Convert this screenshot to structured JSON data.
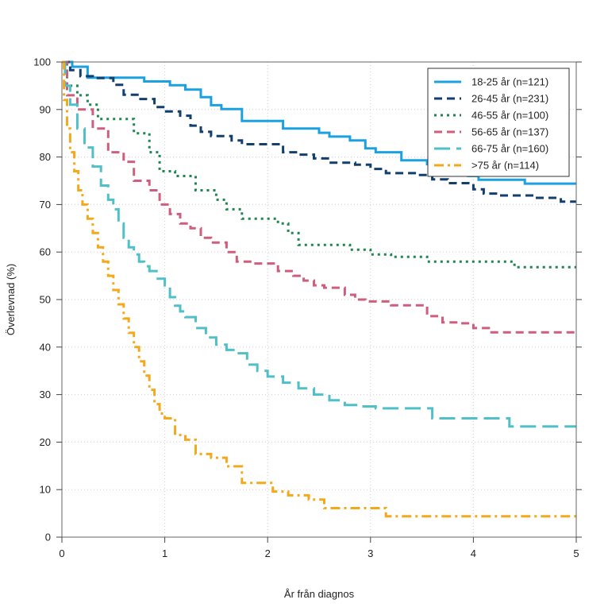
{
  "chart_data": {
    "type": "line",
    "title": "",
    "xlabel": "År från diagnos",
    "ylabel": "Överlevnad (%)",
    "xlim": [
      0,
      5
    ],
    "ylim": [
      0,
      100
    ],
    "x_ticks": [
      "0",
      "1",
      "2",
      "3",
      "4",
      "5"
    ],
    "y_ticks": [
      "0",
      "10",
      "20",
      "30",
      "40",
      "50",
      "60",
      "70",
      "80",
      "90",
      "100"
    ],
    "grid": true,
    "legend_position": "top-right",
    "step": true,
    "series": [
      {
        "name": "18-25 år (n=121)",
        "color": "#1ba1e2",
        "dash": "solid",
        "x": [
          0,
          0.1,
          0.25,
          0.4,
          0.6,
          0.8,
          0.95,
          1.05,
          1.2,
          1.35,
          1.45,
          1.55,
          1.75,
          1.85,
          2.0,
          2.15,
          2.3,
          2.5,
          2.6,
          2.75,
          2.8,
          2.95,
          3.05,
          3.3,
          3.55,
          3.6,
          3.7,
          3.8,
          3.95,
          4.05,
          4.35,
          4.5,
          5.0
        ],
        "y": [
          100,
          99,
          96.7,
          96.7,
          96.7,
          95.9,
          95.9,
          95.1,
          94.2,
          92.6,
          90.9,
          90.1,
          87.6,
          87.6,
          87.6,
          86,
          86,
          85.1,
          84.3,
          84.3,
          83.5,
          81.8,
          81,
          79.3,
          78.5,
          77.7,
          77.7,
          76.9,
          76,
          75.2,
          75.2,
          74.4,
          74.4
        ]
      },
      {
        "name": "26-45 år (n=231)",
        "color": "#123f6e",
        "dash": "dashed",
        "x": [
          0,
          0.08,
          0.18,
          0.3,
          0.5,
          0.6,
          0.75,
          0.9,
          1.0,
          1.15,
          1.25,
          1.35,
          1.45,
          1.65,
          1.75,
          1.85,
          2.0,
          2.15,
          2.3,
          2.45,
          2.6,
          2.85,
          3.0,
          3.15,
          3.45,
          3.6,
          3.75,
          3.9,
          4.0,
          4.1,
          4.25,
          4.6,
          4.85,
          5.0
        ],
        "y": [
          100,
          98.3,
          97,
          96.6,
          95.2,
          93.1,
          92.2,
          90.5,
          89.6,
          88.7,
          86.6,
          85.3,
          84.4,
          83.5,
          82.7,
          82.7,
          82.7,
          81,
          80.5,
          79.7,
          78.8,
          78.4,
          77.5,
          76.6,
          76.2,
          75.3,
          74.5,
          74.5,
          73.2,
          72.3,
          71.9,
          71.4,
          70.6,
          70.6
        ]
      },
      {
        "name": "46-55 år (n=100)",
        "color": "#1e8650",
        "dash": "dotted",
        "x": [
          0,
          0.05,
          0.15,
          0.25,
          0.35,
          0.55,
          0.7,
          0.85,
          0.95,
          1.1,
          1.3,
          1.5,
          1.6,
          1.75,
          1.95,
          2.1,
          2.2,
          2.3,
          2.55,
          2.8,
          3.0,
          3.2,
          3.5,
          3.55,
          3.75,
          4.05,
          4.2,
          4.4,
          5.0
        ],
        "y": [
          100,
          95,
          93,
          91,
          88,
          88,
          85,
          81,
          77,
          76,
          73,
          71,
          69,
          67,
          67,
          66,
          64,
          61.5,
          61.5,
          60.5,
          59.5,
          59,
          59,
          58,
          58,
          58,
          58,
          56.8,
          56.8
        ]
      },
      {
        "name": "56-65 år (n=137)",
        "color": "#cf5e7e",
        "dash": "dashed",
        "x": [
          0,
          0.05,
          0.15,
          0.3,
          0.45,
          0.6,
          0.7,
          0.85,
          0.95,
          1.05,
          1.15,
          1.25,
          1.35,
          1.45,
          1.6,
          1.7,
          1.85,
          2.0,
          2.1,
          2.25,
          2.35,
          2.45,
          2.55,
          2.75,
          2.85,
          2.95,
          3.05,
          3.2,
          3.35,
          3.55,
          3.7,
          3.85,
          4.0,
          4.15,
          5.0
        ],
        "y": [
          100,
          93,
          90,
          86,
          81,
          79,
          75,
          73,
          70,
          68,
          66,
          65,
          63,
          62,
          60,
          58,
          57.6,
          57.6,
          56,
          55,
          54,
          53,
          52.5,
          51,
          50,
          49.6,
          49.6,
          48.8,
          48.8,
          46.5,
          45.2,
          45,
          44,
          43.1,
          43.1
        ]
      },
      {
        "name": "66-75 år (n=160)",
        "color": "#4fbfc8",
        "dash": "long-dashed",
        "x": [
          0,
          0.03,
          0.08,
          0.15,
          0.22,
          0.3,
          0.38,
          0.45,
          0.5,
          0.55,
          0.6,
          0.65,
          0.7,
          0.75,
          0.8,
          0.85,
          0.92,
          1.0,
          1.05,
          1.1,
          1.15,
          1.2,
          1.3,
          1.4,
          1.5,
          1.6,
          1.7,
          1.8,
          1.9,
          2.0,
          2.15,
          2.3,
          2.45,
          2.6,
          2.75,
          2.9,
          3.05,
          3.5,
          3.6,
          3.8,
          4.0,
          4.35,
          5.0
        ],
        "y": [
          100,
          95,
          91,
          86,
          82,
          78,
          74,
          71,
          69,
          66,
          63,
          61,
          59.5,
          58,
          57,
          56,
          54.4,
          53,
          50.5,
          48.7,
          47.5,
          46.3,
          44,
          42,
          40.5,
          39.4,
          38.7,
          36.3,
          35,
          33.8,
          32.5,
          31.3,
          30,
          28.8,
          27.8,
          27.5,
          27.1,
          27.1,
          25,
          25,
          25,
          23.3,
          23.3
        ]
      },
      {
        "name": ">75 år (n=114)",
        "color": "#f4a81b",
        "dash": "dashdot",
        "x": [
          0,
          0.02,
          0.05,
          0.08,
          0.12,
          0.16,
          0.2,
          0.25,
          0.3,
          0.35,
          0.4,
          0.45,
          0.5,
          0.55,
          0.6,
          0.65,
          0.7,
          0.75,
          0.8,
          0.85,
          0.9,
          0.95,
          1.0,
          1.1,
          1.2,
          1.3,
          1.45,
          1.6,
          1.75,
          1.95,
          2.05,
          2.2,
          2.4,
          2.55,
          2.75,
          3.0,
          3.15,
          5.0
        ],
        "y": [
          100,
          92,
          86,
          81,
          77,
          73,
          70,
          67,
          64,
          61,
          58,
          55,
          52,
          49,
          46,
          43,
          40,
          37,
          34,
          31,
          28,
          26,
          25,
          21.5,
          20.5,
          17.5,
          16.7,
          14.9,
          11.4,
          11.4,
          9.6,
          8.8,
          7.9,
          6.1,
          6.1,
          6.1,
          4.4,
          4.4
        ]
      }
    ]
  }
}
